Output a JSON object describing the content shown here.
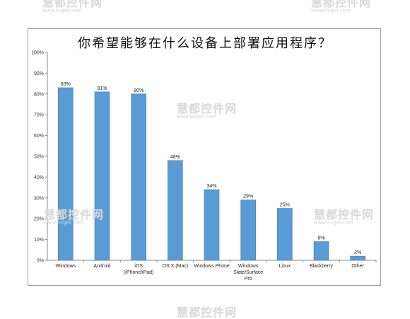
{
  "chart_data": {
    "type": "bar",
    "title": "你希望能够在什么设备上部署应用程序？",
    "xlabel": "",
    "ylabel": "",
    "categories": [
      [
        "Windows"
      ],
      [
        "Android"
      ],
      [
        "iOS",
        "(iPhone/iPad)"
      ],
      [
        "OS X (Mac)"
      ],
      [
        "Windows Phone"
      ],
      [
        "Windows",
        "Slate/Surface",
        "Pro"
      ],
      [
        "Linux"
      ],
      [
        "Blackberry"
      ],
      [
        "Other"
      ]
    ],
    "values": [
      83,
      81,
      80,
      48,
      34,
      29,
      25,
      9,
      2
    ],
    "data_labels": [
      "83%",
      "81%",
      "80%",
      "48%",
      "34%",
      "29%",
      "25%",
      "9%",
      "2%"
    ],
    "ylim": [
      0,
      100
    ],
    "yticks": [
      "0%",
      "10%",
      "20%",
      "30%",
      "40%",
      "50%",
      "60%",
      "70%",
      "80%",
      "90%",
      "100%"
    ],
    "grid": false,
    "bar_color": "#5b9bd5",
    "bar_edge_color": "#3f7fb8"
  },
  "watermarks": [
    {
      "text": "慧都控件网",
      "sub": "www.evget.com"
    },
    {
      "text": "慧都控件网",
      "sub": "www.evget.com"
    },
    {
      "text": "慧都控件网",
      "sub": "www.evget.com"
    },
    {
      "text": "慧都控件网",
      "sub": "www.evget.com"
    },
    {
      "text": "慧都控件网",
      "sub": "www.evget.com"
    },
    {
      "text": "慧都控件网",
      "sub": "www.evget.com"
    }
  ]
}
